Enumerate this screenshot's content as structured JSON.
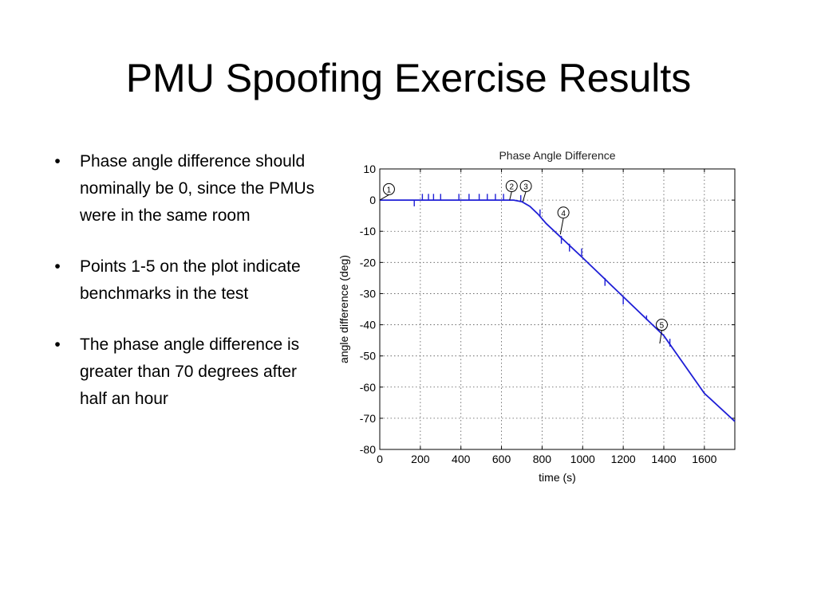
{
  "slide": {
    "title": "PMU Spoofing Exercise Results",
    "bullets": [
      "Phase angle difference should nominally be 0, since the PMUs were in the same room",
      "Points 1-5 on the plot indicate benchmarks in the test",
      "The phase angle difference is greater than 70 degrees after half an hour"
    ],
    "bullet_symbol": "•"
  },
  "chart_data": {
    "type": "line",
    "title": "Phase Angle Difference",
    "xlabel": "time (s)",
    "ylabel": "angle difference (deg)",
    "xlim": [
      0,
      1750
    ],
    "ylim": [
      -80,
      10
    ],
    "xticks": [
      0,
      200,
      400,
      600,
      800,
      1000,
      1200,
      1400,
      1600
    ],
    "yticks": [
      10,
      0,
      -10,
      -20,
      -30,
      -40,
      -50,
      -60,
      -70,
      -80
    ],
    "grid": true,
    "line_color": "#1f1fd6",
    "series": [
      {
        "x": [
          0,
          180,
          660,
          700,
          740,
          780,
          820,
          1000,
          1200,
          1400,
          1600,
          1750
        ],
        "y": [
          0,
          0,
          0,
          -0.5,
          -2,
          -4.5,
          -7.5,
          -18.5,
          -31,
          -43.5,
          -62,
          -71
        ]
      }
    ],
    "spikes": [
      {
        "x": 170,
        "y": 0,
        "dy": -2
      },
      {
        "x": 210,
        "y": 0,
        "dy": 2
      },
      {
        "x": 240,
        "y": 0,
        "dy": 2
      },
      {
        "x": 265,
        "y": 0,
        "dy": 2
      },
      {
        "x": 300,
        "y": 0,
        "dy": 2
      },
      {
        "x": 390,
        "y": 0,
        "dy": 2
      },
      {
        "x": 440,
        "y": 0,
        "dy": 2
      },
      {
        "x": 490,
        "y": 0,
        "dy": 2
      },
      {
        "x": 530,
        "y": 0,
        "dy": 2
      },
      {
        "x": 570,
        "y": 0,
        "dy": 2
      },
      {
        "x": 610,
        "y": 0,
        "dy": 2
      },
      {
        "x": 695,
        "y": -0.4,
        "dy": 2
      },
      {
        "x": 790,
        "y": -5,
        "dy": 2
      },
      {
        "x": 895,
        "y": -11.5,
        "dy": -2.5
      },
      {
        "x": 935,
        "y": -14,
        "dy": -2.5
      },
      {
        "x": 995,
        "y": -18,
        "dy": 2.5
      },
      {
        "x": 1110,
        "y": -25,
        "dy": -2.5
      },
      {
        "x": 1200,
        "y": -31,
        "dy": -2.5
      },
      {
        "x": 1315,
        "y": -38.5,
        "dy": 1.5
      },
      {
        "x": 1430,
        "y": -47,
        "dy": 2.5
      }
    ],
    "annotations": [
      {
        "label": "1",
        "point": [
          0,
          0
        ],
        "marker": [
          45,
          3.5
        ]
      },
      {
        "label": "2",
        "point": [
          640,
          0
        ],
        "marker": [
          650,
          4.5
        ]
      },
      {
        "label": "3",
        "point": [
          705,
          -0.5
        ],
        "marker": [
          720,
          4.5
        ]
      },
      {
        "label": "4",
        "point": [
          890,
          -11
        ],
        "marker": [
          905,
          -4
        ]
      },
      {
        "label": "5",
        "point": [
          1380,
          -46
        ],
        "marker": [
          1390,
          -40
        ]
      }
    ]
  }
}
